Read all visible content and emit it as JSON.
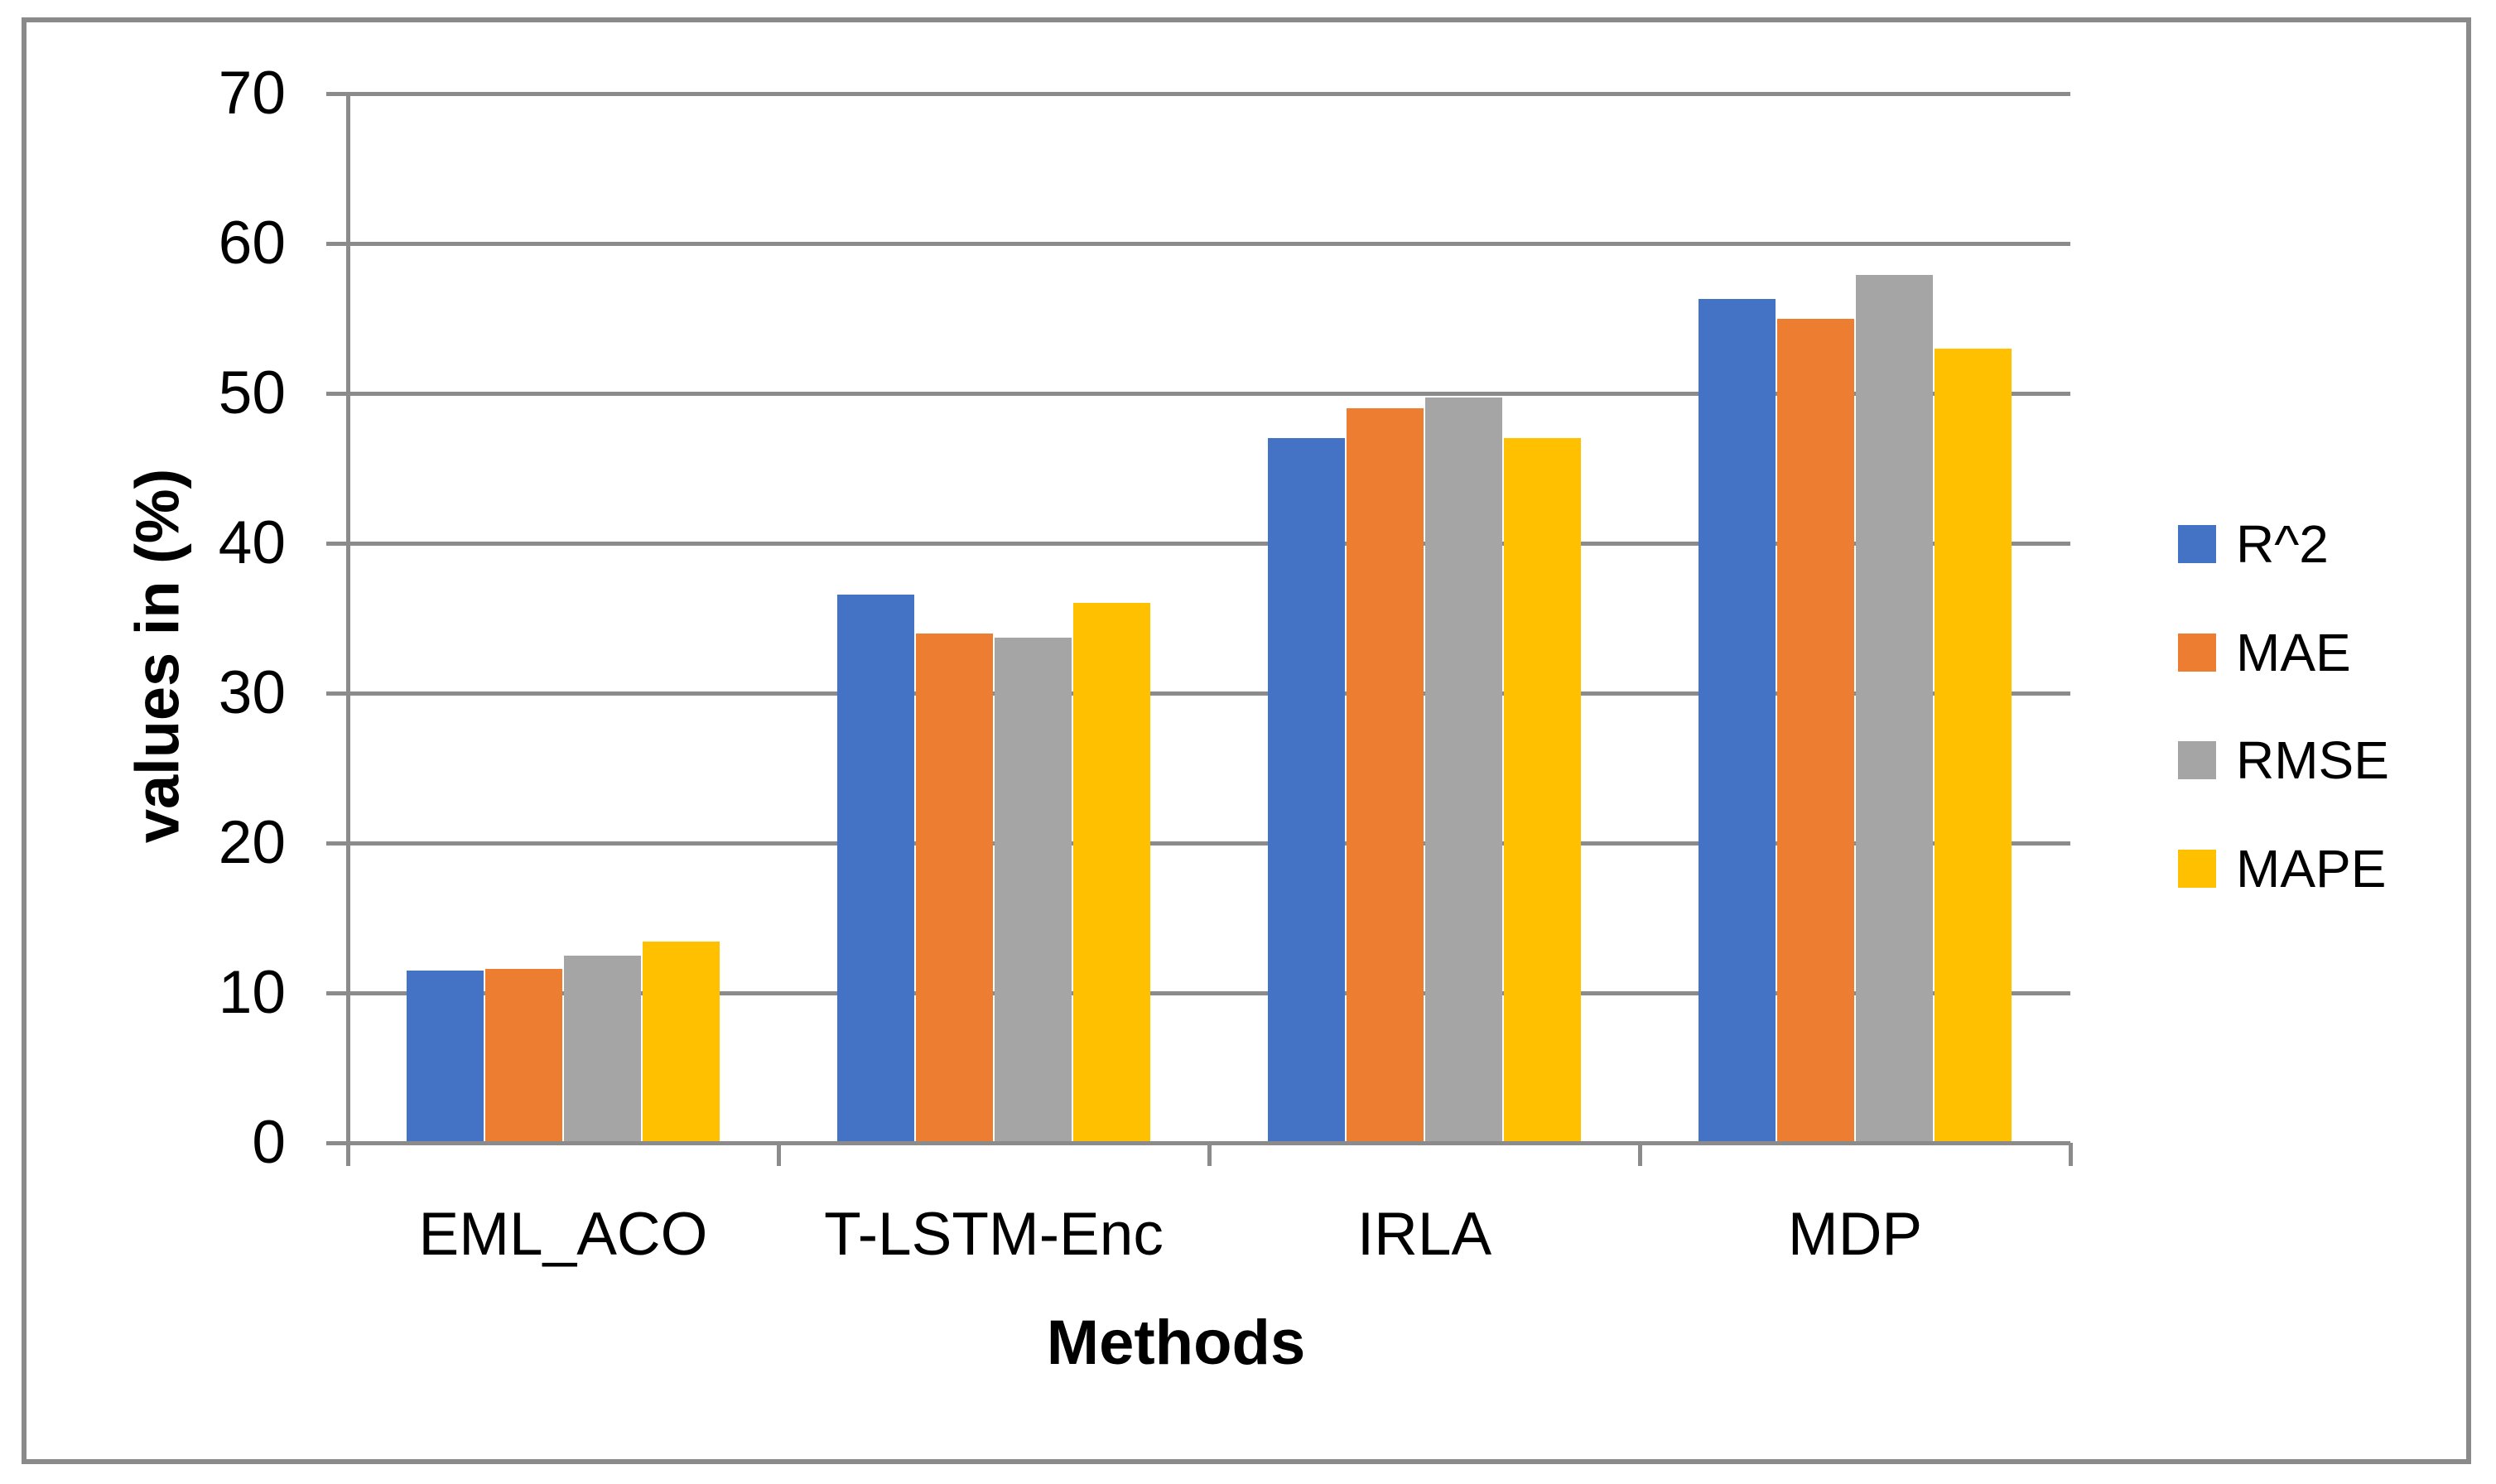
{
  "chart_data": {
    "type": "bar",
    "title": "",
    "xlabel": "Methods",
    "ylabel": "values in (%)",
    "categories": [
      "EML_ACO",
      "T-LSTM-Enc",
      "IRLA",
      "MDP"
    ],
    "series": [
      {
        "name": "R^2",
        "color": "#4472C4",
        "values": [
          11.5,
          36.6,
          47.0,
          56.3
        ]
      },
      {
        "name": "MAE",
        "color": "#ED7D31",
        "values": [
          11.6,
          34.0,
          49.0,
          55.0
        ]
      },
      {
        "name": "RMSE",
        "color": "#A5A5A5",
        "values": [
          12.5,
          33.7,
          49.7,
          57.9
        ]
      },
      {
        "name": "MAPE",
        "color": "#FFC000",
        "values": [
          13.4,
          36.0,
          47.0,
          53.0
        ]
      }
    ],
    "ylim": [
      0,
      70
    ],
    "yticks": [
      0,
      10,
      20,
      30,
      40,
      50,
      60,
      70
    ],
    "grid": true,
    "legend_position": "right",
    "legend": [
      "R^2",
      "MAE",
      "RMSE",
      "MAPE"
    ]
  },
  "colors": {
    "axis": "#8B8B8B",
    "gridline": "#8B8B8B",
    "frame_border": "#8A8A8A",
    "background": "#FFFFFF",
    "text": "#000000"
  }
}
